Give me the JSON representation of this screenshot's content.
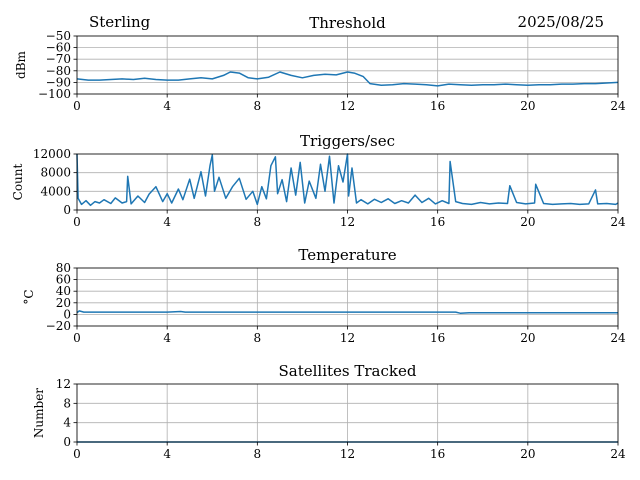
{
  "header": {
    "site": "Sterling",
    "date": "2025/08/25"
  },
  "chart_data": [
    {
      "type": "line",
      "title": "Threshold",
      "ylabel": "dBm",
      "xlabel": "",
      "xlim": [
        0,
        24
      ],
      "ylim": [
        -100,
        -50
      ],
      "xticks": [
        0,
        4,
        8,
        12,
        16,
        20,
        24
      ],
      "yticks": [
        -100,
        -90,
        -80,
        -70,
        -60,
        -50
      ],
      "grid": true,
      "color": "#1f77b4",
      "series": [
        {
          "x": [
            0,
            0.5,
            1,
            1.5,
            2,
            2.5,
            3,
            3.5,
            4,
            4.5,
            5,
            5.5,
            6,
            6.5,
            6.8,
            7.2,
            7.6,
            8,
            8.5,
            9,
            9.5,
            10,
            10.5,
            11,
            11.5,
            12,
            12.3,
            12.7,
            13,
            13.5,
            14,
            14.5,
            15,
            15.5,
            16,
            16.5,
            17,
            17.5,
            18,
            18.5,
            19,
            19.5,
            20,
            20.5,
            21,
            21.5,
            22,
            22.5,
            23,
            23.5,
            24
          ],
          "y": [
            -87,
            -88,
            -88,
            -87.5,
            -87,
            -87.5,
            -86.5,
            -87.5,
            -88,
            -88,
            -87,
            -86,
            -87,
            -84,
            -81,
            -82,
            -86,
            -87,
            -85.5,
            -81,
            -84,
            -86,
            -84,
            -83,
            -83.5,
            -81,
            -82,
            -85,
            -91,
            -92.5,
            -92,
            -91,
            -91.5,
            -92,
            -93,
            -91.5,
            -92,
            -92.5,
            -92,
            -92,
            -91.5,
            -92,
            -92.5,
            -92,
            -92,
            -91.5,
            -91.5,
            -91,
            -91,
            -90.5,
            -90
          ]
        }
      ]
    },
    {
      "type": "line",
      "title": "Triggers/sec",
      "ylabel": "Count",
      "xlabel": "",
      "xlim": [
        0,
        24
      ],
      "ylim": [
        0,
        12000
      ],
      "xticks": [
        0,
        4,
        8,
        12,
        16,
        20,
        24
      ],
      "yticks": [
        0,
        4000,
        8000,
        12000
      ],
      "grid": true,
      "color": "#1f77b4",
      "series": [
        {
          "x": [
            0,
            0.05,
            0.2,
            0.4,
            0.6,
            0.8,
            1,
            1.2,
            1.5,
            1.7,
            2,
            2.2,
            2.25,
            2.4,
            2.7,
            3,
            3.2,
            3.5,
            3.8,
            4,
            4.2,
            4.5,
            4.7,
            5,
            5.2,
            5.5,
            5.7,
            5.9,
            6,
            6.1,
            6.3,
            6.6,
            6.9,
            7.2,
            7.5,
            7.8,
            8,
            8.2,
            8.4,
            8.6,
            8.8,
            8.9,
            9.1,
            9.3,
            9.5,
            9.7,
            9.9,
            10.1,
            10.3,
            10.6,
            10.8,
            11,
            11.2,
            11.4,
            11.6,
            11.8,
            12,
            12.05,
            12.2,
            12.4,
            12.6,
            12.9,
            13.2,
            13.5,
            13.8,
            14.1,
            14.4,
            14.7,
            15,
            15.3,
            15.6,
            15.9,
            16.2,
            16.5,
            16.55,
            16.8,
            17.1,
            17.5,
            17.9,
            18.3,
            18.7,
            19.1,
            19.2,
            19.5,
            19.9,
            20.3,
            20.35,
            20.7,
            21.1,
            21.5,
            21.9,
            22.3,
            22.7,
            23,
            23.1,
            23.5,
            23.9,
            24
          ],
          "y": [
            12000,
            2500,
            1200,
            2000,
            1000,
            1800,
            1500,
            2200,
            1400,
            2600,
            1500,
            1800,
            7200,
            1300,
            3000,
            1600,
            3400,
            5000,
            1800,
            3500,
            1500,
            4500,
            2200,
            6600,
            2500,
            8200,
            3000,
            9500,
            11800,
            4000,
            7000,
            2500,
            5000,
            6800,
            2300,
            4000,
            1200,
            5000,
            2400,
            9500,
            11400,
            3500,
            6500,
            1800,
            9000,
            3200,
            10200,
            1500,
            6200,
            2500,
            9800,
            4000,
            11500,
            1500,
            9500,
            6000,
            12000,
            3000,
            9000,
            1500,
            2200,
            1300,
            2300,
            1600,
            2400,
            1400,
            2000,
            1500,
            3200,
            1600,
            2500,
            1300,
            2000,
            1400,
            10400,
            1800,
            1400,
            1200,
            1600,
            1300,
            1500,
            1400,
            5200,
            1600,
            1300,
            1500,
            5500,
            1400,
            1200,
            1300,
            1400,
            1200,
            1300,
            4300,
            1300,
            1400,
            1200,
            1500
          ]
        }
      ]
    },
    {
      "type": "line",
      "title": "Temperature",
      "ylabel": "°C",
      "xlabel": "",
      "xlim": [
        0,
        24
      ],
      "ylim": [
        -20,
        80
      ],
      "xticks": [
        0,
        4,
        8,
        12,
        16,
        20,
        24
      ],
      "yticks": [
        -20,
        0,
        20,
        40,
        60,
        80
      ],
      "grid": true,
      "color": "#1f77b4",
      "series": [
        {
          "x": [
            0,
            0.1,
            0.3,
            4,
            4.6,
            4.8,
            8,
            12,
            16,
            16.8,
            17,
            17.4,
            18,
            20,
            24
          ],
          "y": [
            3,
            6,
            4,
            4,
            5,
            4,
            4,
            4,
            4,
            4,
            2,
            3,
            3,
            3,
            3
          ]
        }
      ]
    },
    {
      "type": "line",
      "title": "Satellites Tracked",
      "ylabel": "Number",
      "xlabel": "",
      "xlim": [
        0,
        24
      ],
      "ylim": [
        0,
        12
      ],
      "xticks": [
        0,
        4,
        8,
        12,
        16,
        20,
        24
      ],
      "yticks": [
        0,
        4,
        8,
        12
      ],
      "grid": true,
      "color": "#1f77b4",
      "series": [
        {
          "x": [
            0,
            24
          ],
          "y": [
            0,
            0
          ]
        }
      ]
    }
  ]
}
